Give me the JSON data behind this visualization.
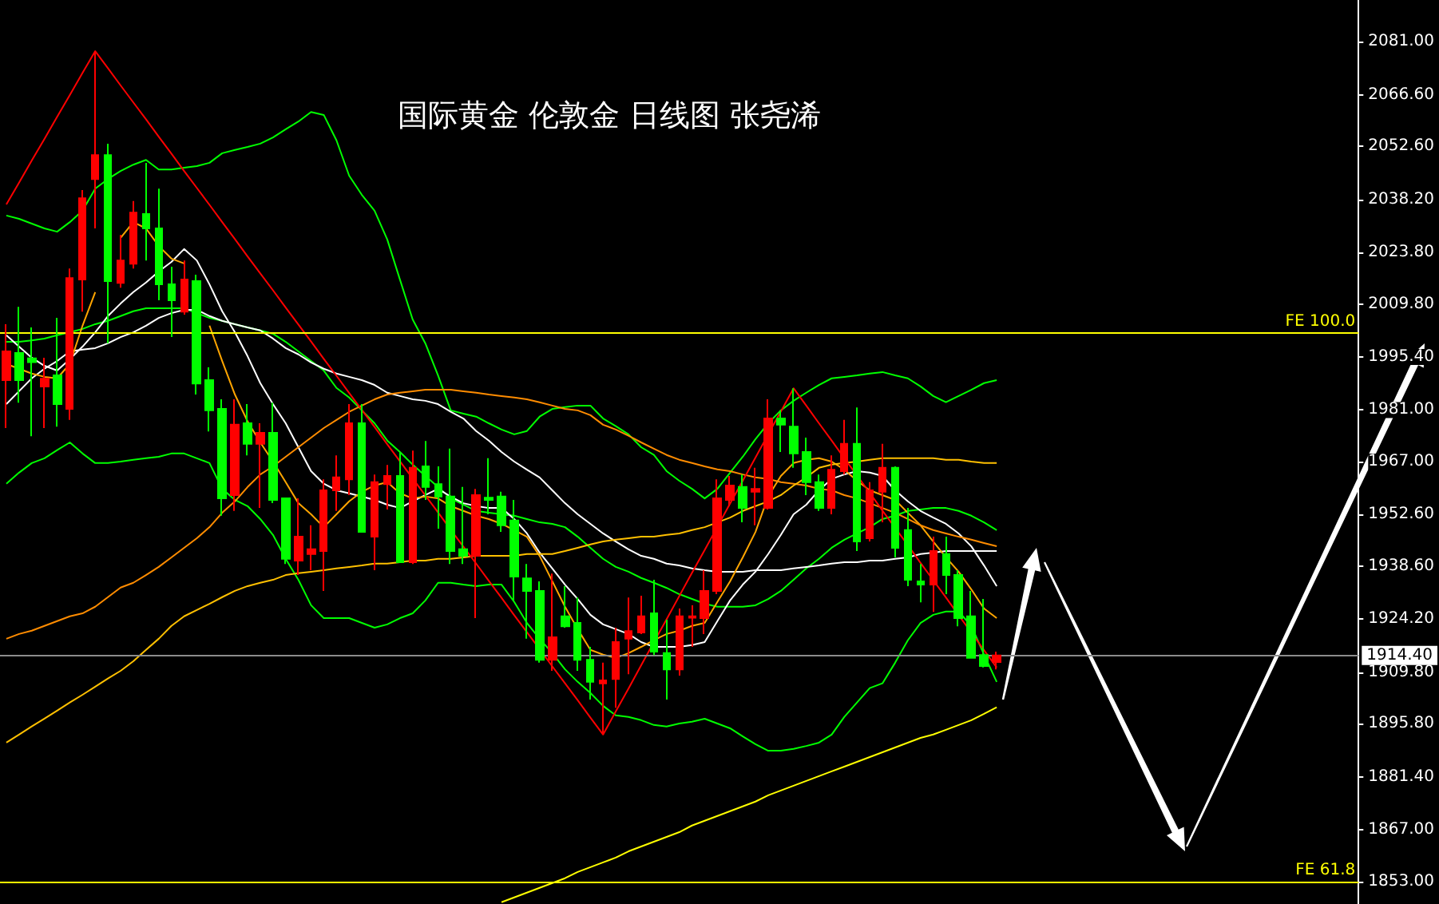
{
  "chart_data": {
    "type": "candlestick",
    "title": "国际黄金 伦敦金 日线图 张尧浠",
    "categories": [
      null,
      null,
      null,
      null,
      null,
      null,
      null,
      null,
      null,
      null,
      null,
      null,
      null,
      null,
      null,
      null,
      null,
      null,
      null,
      null,
      null,
      null,
      null,
      null,
      null,
      null,
      null,
      null,
      null,
      null,
      null,
      null,
      null,
      null,
      null,
      null,
      null,
      null,
      null,
      null,
      null,
      null,
      null,
      null,
      null,
      null,
      null,
      null,
      null,
      null,
      null,
      null,
      null,
      null,
      null,
      null,
      null,
      null,
      null,
      null,
      null,
      null,
      null,
      null,
      null,
      null,
      null,
      null,
      null,
      null,
      null,
      null,
      null,
      null,
      null,
      null,
      null,
      null,
      null,
      null,
      null,
      null,
      null,
      null,
      null,
      null,
      null,
      null,
      null,
      null,
      null,
      null,
      null,
      null,
      null,
      null,
      null,
      null,
      null,
      null,
      null,
      null,
      null,
      null,
      null,
      null,
      null
    ],
    "ohlc": [
      [
        1989.1,
        2004.3,
        1976.1,
        1996.9
      ],
      [
        1996.5,
        2009.0,
        1983.0,
        1989.1
      ],
      [
        1995.0,
        2003.4,
        1973.9,
        1994.0
      ],
      [
        1987.4,
        1995.2,
        1976.1,
        1989.5
      ],
      [
        1990.4,
        2006.0,
        1976.5,
        1982.6
      ],
      [
        1981.3,
        2019.4,
        1978.3,
        2016.8
      ],
      [
        2016.4,
        2040.7,
        2007.7,
        2038.5
      ],
      [
        2043.7,
        2078.4,
        2030.3,
        2050.2
      ],
      [
        2050.2,
        2053.3,
        1999.1,
        2016.0
      ],
      [
        2015.5,
        2028.5,
        2014.2,
        2021.6
      ],
      [
        2020.7,
        2037.7,
        2019.4,
        2034.6
      ],
      [
        2034.2,
        2048.1,
        2021.6,
        2030.3
      ],
      [
        2030.3,
        2041.1,
        2010.8,
        2015.1
      ],
      [
        2015.1,
        2019.9,
        2000.8,
        2010.8
      ],
      [
        2007.7,
        2021.6,
        2006.9,
        2016.4
      ],
      [
        2016.0,
        2017.7,
        1985.2,
        1988.2
      ],
      [
        1989.1,
        1992.6,
        1975.2,
        1980.9
      ],
      [
        1981.3,
        1983.9,
        1952.3,
        1957.0
      ],
      [
        1957.9,
        1983.9,
        1953.6,
        1977.0
      ],
      [
        1977.4,
        1982.6,
        1968.7,
        1971.8
      ],
      [
        1971.8,
        1977.4,
        1954.4,
        1974.8
      ],
      [
        1974.8,
        1983.0,
        1955.7,
        1956.6
      ],
      [
        1957.0,
        1957.0,
        1939.2,
        1940.6
      ],
      [
        1940.1,
        1957.0,
        1936.2,
        1946.6
      ],
      [
        1941.9,
        1949.7,
        1937.5,
        1943.2
      ],
      [
        1942.7,
        1962.2,
        1931.9,
        1959.2
      ],
      [
        1959.2,
        1968.7,
        1953.6,
        1962.7
      ],
      [
        1962.2,
        1982.6,
        1957.9,
        1977.4
      ],
      [
        1977.4,
        1982.6,
        1947.9,
        1947.9
      ],
      [
        1946.6,
        1963.5,
        1937.5,
        1961.4
      ],
      [
        1960.9,
        1966.1,
        1954.0,
        1963.1
      ],
      [
        1963.1,
        1969.6,
        1939.7,
        1939.7
      ],
      [
        1939.7,
        1970.0,
        1939.2,
        1965.3
      ],
      [
        1965.7,
        1972.6,
        1956.6,
        1960.1
      ],
      [
        1960.9,
        1965.7,
        1948.8,
        1957.5
      ],
      [
        1957.5,
        1970.5,
        1939.2,
        1942.7
      ],
      [
        1943.2,
        1960.1,
        1939.2,
        1941.4
      ],
      [
        1941.4,
        1959.6,
        1924.5,
        1957.9
      ],
      [
        1957.2,
        1967.9,
        1952.7,
        1956.6
      ],
      [
        1957.5,
        1958.8,
        1947.9,
        1949.7
      ],
      [
        1951.0,
        1956.6,
        1929.3,
        1935.8
      ],
      [
        1935.3,
        1939.2,
        1918.9,
        1931.9
      ],
      [
        1931.9,
        1934.5,
        1912.4,
        1913.2
      ],
      [
        1913.2,
        1936.6,
        1910.2,
        1919.3
      ],
      [
        1925.0,
        1933.2,
        1921.9,
        1922.3
      ],
      [
        1923.2,
        1930.1,
        1910.2,
        1913.2
      ],
      [
        1913.2,
        1916.7,
        1902.4,
        1907.2
      ],
      [
        1906.8,
        1912.4,
        1892.9,
        1907.6
      ],
      [
        1908.0,
        1921.9,
        1900.2,
        1918.0
      ],
      [
        1918.9,
        1930.1,
        1909.3,
        1921.0
      ],
      [
        1920.6,
        1930.6,
        1920.2,
        1925.0
      ],
      [
        1925.8,
        1934.9,
        1914.5,
        1915.4
      ],
      [
        1915.0,
        1924.1,
        1902.4,
        1910.6
      ],
      [
        1910.6,
        1927.1,
        1908.9,
        1925.0
      ],
      [
        1924.6,
        1928.0,
        1916.7,
        1925.0
      ],
      [
        1924.5,
        1937.5,
        1920.2,
        1931.9
      ],
      [
        1931.9,
        1962.2,
        1931.0,
        1957.0
      ],
      [
        1956.6,
        1963.1,
        1954.9,
        1960.5
      ],
      [
        1960.1,
        1963.5,
        1950.5,
        1954.4
      ],
      [
        1958.8,
        1965.3,
        1949.7,
        1959.6
      ],
      [
        1954.4,
        1983.9,
        1954.0,
        1978.7
      ],
      [
        1978.7,
        1980.9,
        1969.6,
        1977.0
      ],
      [
        1976.5,
        1986.9,
        1965.3,
        1969.2
      ],
      [
        1969.6,
        1973.5,
        1957.9,
        1961.4
      ],
      [
        1961.4,
        1963.5,
        1953.6,
        1954.4
      ],
      [
        1954.4,
        1968.7,
        1952.7,
        1964.8
      ],
      [
        1964.4,
        1978.3,
        1963.5,
        1971.8
      ],
      [
        1971.8,
        1981.7,
        1942.7,
        1945.3
      ],
      [
        1946.2,
        1961.4,
        1945.3,
        1959.2
      ],
      [
        1958.8,
        1971.8,
        1950.5,
        1965.3
      ],
      [
        1965.3,
        1965.7,
        1941.0,
        1943.6
      ],
      [
        1948.4,
        1954.4,
        1933.2,
        1934.9
      ],
      [
        1934.5,
        1939.2,
        1928.8,
        1933.6
      ],
      [
        1933.6,
        1946.6,
        1926.2,
        1942.7
      ],
      [
        1941.9,
        1946.6,
        1931.0,
        1936.2
      ],
      [
        1936.2,
        1937.5,
        1922.3,
        1924.5
      ],
      [
        1925.0,
        1931.9,
        1913.7,
        1913.7
      ],
      [
        1914.5,
        1929.7,
        1911.1,
        1911.5
      ],
      [
        1912.6,
        1915.4,
        1910.6,
        1914.4
      ],
      null,
      null,
      null,
      null,
      null,
      null,
      null,
      null,
      null,
      null,
      null,
      null,
      null,
      null,
      null,
      null,
      null,
      null,
      null,
      null,
      null,
      null,
      null,
      null,
      null,
      null,
      null,
      null
    ],
    "colors": [
      "#ff0000",
      "#00ff00",
      "#00ff00",
      "#ff0000",
      "#00ff00",
      "#ff0000",
      "#ff0000",
      "#ff0000",
      "#00ff00",
      "#ff0000",
      "#ff0000",
      "#00ff00",
      "#00ff00",
      "#00ff00",
      "#ff0000",
      "#00ff00",
      "#00ff00",
      "#00ff00",
      "#ff0000",
      "#00ff00",
      "#ff0000",
      "#00ff00",
      "#00ff00",
      "#ff0000",
      "#ff0000",
      "#ff0000",
      "#ff0000",
      "#ff0000",
      "#00ff00",
      "#ff0000",
      "#ff0000",
      "#00ff00",
      "#ff0000",
      "#00ff00",
      "#00ff00",
      "#00ff00",
      "#00ff00",
      "#ff0000",
      "#00ff00",
      "#00ff00",
      "#00ff00",
      "#00ff00",
      "#00ff00",
      "#ff0000",
      "#00ff00",
      "#00ff00",
      "#00ff00",
      "#ff0000",
      "#ff0000",
      "#ff0000",
      "#ff0000",
      "#00ff00",
      "#00ff00",
      "#ff0000",
      "#ff0000",
      "#ff0000",
      "#ff0000",
      "#ff0000",
      "#00ff00",
      "#ff0000",
      "#ff0000",
      "#00ff00",
      "#00ff00",
      "#00ff00",
      "#00ff00",
      "#ff0000",
      "#ff0000",
      "#00ff00",
      "#ff0000",
      "#ff0000",
      "#00ff00",
      "#00ff00",
      "#00ff00",
      "#ff0000",
      "#00ff00",
      "#00ff00",
      "#00ff00",
      "#00ff00",
      "#ff0000",
      null,
      null,
      null,
      null,
      null,
      null,
      null,
      null,
      null,
      null,
      null,
      null,
      null,
      null,
      null,
      null,
      null,
      null,
      null,
      null,
      null,
      null,
      null,
      null,
      null,
      null,
      null,
      null
    ],
    "series": [
      {
        "type": "line",
        "color": "#00ff00",
        "values": [
          2033.8,
          2032.9,
          2031.6,
          2030.3,
          2029.4,
          2032.0,
          2035.1,
          2041.1,
          2043.7,
          2045.9,
          2047.6,
          2048.9,
          2046.3,
          2046.3,
          2046.8,
          2047.2,
          2048.1,
          2050.7,
          2051.6,
          2052.4,
          2053.3,
          2055.0,
          2057.2,
          2059.3,
          2061.9,
          2061.1,
          2054.2,
          2044.6,
          2039.4,
          2035.1,
          2027.3,
          2016.4,
          2005.6,
          1999.1,
          1990.4,
          1980.9,
          1980.0,
          1979.2,
          1977.4,
          1975.7,
          1974.4,
          1975.3,
          1979.2,
          1981.3,
          1981.8,
          1982.2,
          1982.2,
          1978.7,
          1976.6,
          1974.4,
          1970.9,
          1968.8,
          1964.4,
          1961.8,
          1959.6,
          1957.0,
          1959.6,
          1964.0,
          1968.3,
          1973.1,
          1977.4,
          1980.9,
          1983.5,
          1985.7,
          1987.8,
          1989.6,
          1990.0,
          1990.4,
          1990.9,
          1991.3,
          1990.4,
          1989.6,
          1987.4,
          1984.8,
          1983.1,
          1984.8,
          1986.5,
          1988.3,
          1989.1,
          null,
          null,
          null,
          null,
          null,
          null,
          null,
          null,
          null,
          null,
          null,
          null,
          null,
          null,
          null,
          null,
          null,
          null,
          null,
          null,
          null,
          null,
          null,
          null,
          null,
          null,
          null,
          null
        ]
      },
      {
        "type": "line",
        "color": "#00ff00",
        "values": [
          1999.5,
          1999.5,
          1999.9,
          2000.4,
          2001.3,
          2002.1,
          2003.0,
          2004.3,
          2005.2,
          2006.5,
          2007.8,
          2008.6,
          2008.6,
          2008.6,
          2008.6,
          2007.3,
          2006.0,
          2005.2,
          2004.3,
          2003.4,
          2002.6,
          2001.7,
          1999.5,
          1996.9,
          1994.3,
          1991.7,
          1987.0,
          1984.4,
          1980.9,
          1977.4,
          1972.7,
          1969.6,
          1966.2,
          1963.1,
          1960.1,
          1957.0,
          1955.3,
          1953.6,
          1953.1,
          1952.7,
          1952.3,
          1951.4,
          1950.5,
          1950.1,
          1949.2,
          1946.6,
          1943.6,
          1940.6,
          1938.4,
          1937.1,
          1935.4,
          1934.1,
          1932.7,
          1931.0,
          1929.7,
          1928.4,
          1927.6,
          1927.6,
          1927.6,
          1928.0,
          1929.7,
          1931.9,
          1934.9,
          1938.0,
          1940.6,
          1943.6,
          1945.8,
          1947.5,
          1949.2,
          1951.4,
          1952.3,
          1953.6,
          1954.0,
          1954.4,
          1954.4,
          1953.6,
          1952.3,
          1950.5,
          1948.4,
          null,
          null,
          null,
          null,
          null,
          null,
          null,
          null,
          null,
          null,
          null,
          null,
          null,
          null,
          null,
          null,
          null,
          null,
          null,
          null,
          null,
          null,
          null,
          null,
          null,
          null,
          null,
          null
        ]
      },
      {
        "type": "line",
        "color": "#00ff00",
        "values": [
          1961.0,
          1964.0,
          1966.6,
          1967.9,
          1970.1,
          1972.2,
          1969.2,
          1966.6,
          1966.6,
          1967.0,
          1967.5,
          1967.9,
          1968.3,
          1969.2,
          1969.2,
          1967.9,
          1966.6,
          1959.6,
          1956.6,
          1954.9,
          1951.4,
          1947.1,
          1940.6,
          1934.9,
          1928.0,
          1924.5,
          1924.5,
          1924.5,
          1923.2,
          1921.9,
          1922.8,
          1924.5,
          1925.8,
          1929.3,
          1934.1,
          1934.1,
          1933.6,
          1933.2,
          1933.6,
          1933.6,
          1928.9,
          1923.2,
          1918.9,
          1915.0,
          1910.6,
          1907.2,
          1904.2,
          1900.7,
          1898.1,
          1897.7,
          1896.8,
          1895.5,
          1895.1,
          1895.9,
          1896.4,
          1897.2,
          1895.9,
          1894.6,
          1892.4,
          1890.3,
          1888.5,
          1888.5,
          1889.0,
          1889.8,
          1890.7,
          1892.9,
          1897.7,
          1901.6,
          1905.5,
          1906.8,
          1912.4,
          1918.5,
          1923.2,
          1925.4,
          1926.3,
          1926.3,
          1922.4,
          1914.6,
          1907.2,
          null,
          null,
          null,
          null,
          null,
          null,
          null,
          null,
          null,
          null,
          null,
          null,
          null,
          null,
          null,
          null,
          null,
          null,
          null,
          null,
          null,
          null,
          null,
          null,
          null,
          null,
          null,
          null
        ]
      },
      {
        "type": "line",
        "color": "#ffffff",
        "values": [
          2001.3,
          1998.2,
          1995.2,
          1993.0,
          1991.7,
          1994.8,
          1998.2,
          2002.1,
          2006.5,
          2009.9,
          2013.0,
          2015.6,
          2018.6,
          2021.2,
          2024.7,
          2021.6,
          2015.1,
          2007.8,
          2002.1,
          1995.6,
          1988.3,
          1982.6,
          1977.4,
          1970.9,
          1964.4,
          1961.0,
          1959.2,
          1958.4,
          1957.5,
          1956.6,
          1955.3,
          1954.4,
          1956.2,
          1957.9,
          1959.6,
          1957.5,
          1955.7,
          1954.9,
          1954.4,
          1954.4,
          1951.4,
          1947.5,
          1942.3,
          1938.0,
          1933.6,
          1929.7,
          1925.4,
          1922.8,
          1921.5,
          1920.2,
          1918.0,
          1916.7,
          1916.7,
          1916.7,
          1917.2,
          1918.0,
          1923.7,
          1929.3,
          1933.6,
          1937.1,
          1941.9,
          1947.1,
          1952.7,
          1955.3,
          1959.2,
          1962.3,
          1963.5,
          1964.4,
          1964.0,
          1963.1,
          1959.2,
          1956.2,
          1953.6,
          1951.8,
          1950.1,
          1947.5,
          1944.0,
          1938.8,
          1933.2,
          null,
          null,
          null,
          null,
          null,
          null,
          null,
          null,
          null,
          null,
          null,
          null,
          null,
          null,
          null,
          null,
          null,
          null,
          null,
          null,
          null,
          null,
          null,
          null,
          null,
          null,
          null,
          null
        ]
      },
      {
        "type": "line",
        "color": "#ffffff",
        "values": [
          1982.6,
          1986.1,
          1989.6,
          1992.2,
          1994.3,
          1996.9,
          1997.4,
          1997.8,
          1999.1,
          2000.8,
          2002.1,
          2003.9,
          2006.0,
          2007.3,
          2008.2,
          2008.2,
          2006.5,
          2005.2,
          2004.3,
          2003.4,
          2002.6,
          2000.4,
          1997.8,
          1996.1,
          1993.9,
          1992.2,
          1990.9,
          1990.0,
          1989.1,
          1987.8,
          1985.7,
          1984.8,
          1983.9,
          1983.5,
          1982.6,
          1980.5,
          1978.7,
          1975.3,
          1972.7,
          1969.6,
          1967.0,
          1964.8,
          1962.7,
          1959.2,
          1955.7,
          1952.7,
          1950.1,
          1947.5,
          1945.3,
          1943.2,
          1941.4,
          1940.6,
          1939.3,
          1938.8,
          1938.0,
          1937.5,
          1937.1,
          1937.1,
          1937.1,
          1937.5,
          1937.5,
          1937.5,
          1938.0,
          1938.4,
          1938.8,
          1939.3,
          1939.7,
          1939.7,
          1940.1,
          1940.1,
          1940.6,
          1941.0,
          1941.9,
          1942.3,
          1942.7,
          1942.7,
          1942.7,
          1942.7,
          1942.7,
          null,
          null,
          null,
          null,
          null,
          null,
          null,
          null,
          null,
          null,
          null,
          null,
          null,
          null,
          null,
          null,
          null,
          null,
          null,
          null,
          null,
          null,
          null,
          null,
          null,
          null,
          null,
          null
        ]
      },
      {
        "type": "line",
        "color": "#ffa500",
        "values": [
          1993.5,
          1992.2,
          1990.9,
          1990.0,
          1989.6,
          1993.5,
          2003.9,
          2013.0,
          null,
          2027.7,
          2032.0,
          2030.3,
          2025.5,
          2022.1,
          2020.8,
          null,
          2003.9,
          1994.3,
          1985.2,
          1977.9,
          1972.2,
          1967.0,
          1961.4,
          1955.7,
          1952.7,
          1949.2,
          1952.7,
          1956.2,
          1958.8,
          1960.5,
          1961.4,
          1958.4,
          1957.0,
          1957.5,
          1957.0,
          1954.9,
          1953.6,
          1952.3,
          1951.4,
          1950.1,
          1948.4,
          1946.6,
          1941.4,
          1934.5,
          1927.6,
          1921.5,
          1915.9,
          1914.6,
          1913.7,
          1915.0,
          1916.7,
          1918.5,
          1920.2,
          1921.1,
          1922.4,
          1923.2,
          1928.9,
          1934.5,
          1941.0,
          1947.9,
          1957.5,
          1963.1,
          1966.6,
          1967.5,
          1967.9,
          1967.0,
          1964.8,
          1961.8,
          1959.2,
          1957.9,
          1956.6,
          1953.1,
          1949.7,
          1945.3,
          1941.0,
          1937.1,
          1932.3,
          1927.1,
          1924.5,
          null,
          null,
          null,
          null,
          null,
          null,
          null,
          null,
          null,
          null,
          null,
          null,
          null,
          null,
          null,
          null,
          null,
          null,
          null,
          null,
          null,
          null,
          null,
          null,
          null,
          null,
          null,
          null
        ]
      },
      {
        "type": "line",
        "color": "#ff8c00",
        "values": [
          1918.9,
          1920.2,
          1921.1,
          1922.4,
          1923.7,
          1925.0,
          1925.8,
          1927.6,
          1930.2,
          1932.8,
          1934.1,
          1936.2,
          1938.4,
          1941.0,
          1943.6,
          1946.2,
          1949.2,
          1953.1,
          1956.2,
          1960.1,
          1963.5,
          1965.7,
          1968.3,
          1970.9,
          1973.5,
          1976.1,
          1978.3,
          1980.5,
          1982.2,
          1983.9,
          1985.2,
          1985.7,
          1986.1,
          1986.5,
          1986.5,
          1986.5,
          1986.1,
          1985.7,
          1985.2,
          1984.8,
          1984.4,
          1983.9,
          1983.1,
          1982.2,
          1981.3,
          1980.9,
          1979.6,
          1977.0,
          1975.7,
          1974.0,
          1972.2,
          1970.5,
          1968.8,
          1967.5,
          1966.6,
          1965.7,
          1964.9,
          1964.4,
          1963.5,
          1962.7,
          1962.3,
          1961.4,
          1961.0,
          1960.5,
          1959.6,
          1959.2,
          1957.9,
          1957.0,
          1955.7,
          1954.4,
          1953.1,
          1951.4,
          1949.7,
          1948.4,
          1947.5,
          1946.6,
          1945.8,
          1944.9,
          1944.0,
          null,
          null,
          null,
          null,
          null,
          null,
          null,
          null,
          null,
          null,
          null,
          null,
          null,
          null,
          null,
          null,
          null,
          null,
          null,
          null,
          null,
          null,
          null,
          null,
          null,
          null,
          null,
          null
        ]
      },
      {
        "type": "line",
        "color": "#ffc000",
        "values": [
          1890.7,
          1892.9,
          1895.1,
          1897.2,
          1899.4,
          1901.6,
          1903.7,
          1905.9,
          1908.1,
          1910.2,
          1912.8,
          1915.9,
          1918.9,
          1922.4,
          1925.0,
          1926.7,
          1928.4,
          1930.2,
          1931.9,
          1933.2,
          1934.1,
          1934.9,
          1936.2,
          1936.7,
          1937.1,
          1937.5,
          1938.0,
          1938.4,
          1938.8,
          1939.3,
          1939.3,
          1939.7,
          1940.1,
          1940.1,
          1940.6,
          1940.6,
          1941.0,
          1941.4,
          1941.4,
          1941.4,
          1941.4,
          1941.9,
          1941.9,
          1941.9,
          1942.7,
          1943.6,
          1944.5,
          1945.3,
          1945.8,
          1946.2,
          1946.6,
          1946.6,
          1947.1,
          1947.5,
          1948.4,
          1949.2,
          1950.5,
          1951.8,
          1953.6,
          1954.9,
          1956.2,
          1957.9,
          1960.5,
          1962.7,
          1965.3,
          1966.2,
          1966.6,
          1967.0,
          1967.5,
          1967.9,
          1967.9,
          1967.9,
          1967.9,
          1967.9,
          1967.5,
          1967.5,
          1967.0,
          1966.6,
          1966.6,
          null,
          null,
          null,
          null,
          null,
          null,
          null,
          null,
          null,
          null,
          null,
          null,
          null,
          null,
          null,
          null,
          null,
          null,
          null,
          null,
          null,
          null,
          null,
          null,
          null,
          null,
          null,
          null
        ]
      },
      {
        "type": "line",
        "color": "#ffff00",
        "values": [
          null,
          null,
          null,
          null,
          null,
          null,
          null,
          null,
          null,
          null,
          null,
          null,
          null,
          null,
          null,
          null,
          null,
          null,
          null,
          null,
          null,
          null,
          null,
          null,
          null,
          null,
          null,
          null,
          null,
          null,
          null,
          null,
          null,
          null,
          null,
          null,
          null,
          null,
          null,
          1847.4,
          1848.7,
          1850.0,
          1851.3,
          1852.6,
          1853.9,
          1855.6,
          1856.9,
          1858.2,
          1859.5,
          1861.2,
          1862.5,
          1863.8,
          1865.1,
          1866.4,
          1868.2,
          1869.5,
          1870.8,
          1872.1,
          1873.4,
          1874.7,
          1876.4,
          1877.7,
          1879.0,
          1880.3,
          1881.6,
          1882.9,
          1884.2,
          1885.5,
          1886.8,
          1888.1,
          1889.4,
          1890.7,
          1892.0,
          1892.9,
          1894.2,
          1895.5,
          1896.8,
          1898.5,
          1900.3,
          null,
          null,
          null,
          null,
          null,
          null,
          null,
          null,
          null,
          null,
          null,
          null,
          null,
          null,
          null,
          null,
          null,
          null,
          null,
          null,
          null,
          null,
          null,
          null,
          null,
          null,
          null,
          null
        ]
      },
      {
        "type": "line",
        "color": "#ff0000",
        "values": [
          2036.8,
          2042.7,
          2048.7,
          2054.6,
          2060.6,
          2066.5,
          2072.5,
          2078.4,
          2073.8,
          2069.1,
          2064.5,
          2059.9,
          2055.2,
          2050.6,
          2045.9,
          2041.3,
          2036.7,
          2032.0,
          2027.4,
          2022.7,
          2018.1,
          2013.5,
          2008.8,
          2004.2,
          1999.6,
          1994.9,
          1990.3,
          1985.6,
          1981.0,
          1976.4,
          1971.7,
          1967.1,
          1962.4,
          1957.8,
          1953.2,
          1948.5,
          1943.9,
          1939.3,
          1934.6,
          1930.0,
          1925.3,
          1920.7,
          1916.1,
          1911.4,
          1906.8,
          1902.2,
          1897.5,
          1892.9,
          1899.2,
          1905.4,
          1911.7,
          1918.0,
          1924.2,
          1930.5,
          1936.8,
          1943.0,
          1949.3,
          1955.6,
          1961.8,
          1968.1,
          1974.4,
          1980.6,
          1986.9,
          1982.2,
          1977.4,
          1972.7,
          1967.9,
          1963.2,
          1958.5,
          1953.7,
          1949.0,
          1944.3,
          1939.5,
          1934.8,
          1930.1,
          1925.3,
          1920.6,
          1915.8,
          1911.1,
          null,
          null,
          null,
          null,
          null,
          null,
          null,
          null,
          null,
          null,
          null,
          null,
          null,
          null,
          null,
          null,
          null,
          null,
          null,
          null,
          null,
          null,
          null,
          null,
          null,
          null,
          null,
          null
        ]
      }
    ],
    "ylim": [
      1846.9,
      2092.3
    ],
    "yticks": [
      {
        "value": 2081,
        "label": "2081.00"
      },
      {
        "value": 2066.6,
        "label": "2066.60"
      },
      {
        "value": 2052.6,
        "label": "2052.60"
      },
      {
        "value": 2038.2,
        "label": "2038.20"
      },
      {
        "value": 2023.8,
        "label": "2023.80"
      },
      {
        "value": 2009.8,
        "label": "2009.80"
      },
      {
        "value": 1995.4,
        "label": "1995.40"
      },
      {
        "value": 1981,
        "label": "1981.00"
      },
      {
        "value": 1967,
        "label": "1967.00"
      },
      {
        "value": 1952.6,
        "label": "1952.60"
      },
      {
        "value": 1938.6,
        "label": "1938.60"
      },
      {
        "value": 1924.2,
        "label": "1924.20"
      },
      {
        "value": 1909.8,
        "label": "1909.80"
      },
      {
        "value": 1895.8,
        "label": "1895.80"
      },
      {
        "value": 1881.4,
        "label": "1881.40"
      },
      {
        "value": 1867,
        "label": "1867.00"
      },
      {
        "value": 1853,
        "label": "1853.00"
      }
    ],
    "ref_lines": [
      {
        "axis": "y",
        "value": 2001.9,
        "label": "FE 100.0",
        "color": "#ffff00"
      },
      {
        "axis": "y",
        "value": 1853.0,
        "label": "FE 61.8",
        "color": "#ffff00"
      },
      {
        "axis": "y",
        "value": 1914.4,
        "label": "1914.40",
        "color": "#8c8c8c"
      }
    ],
    "tick_labels": "y",
    "grid": false,
    "line_style": "solid"
  }
}
